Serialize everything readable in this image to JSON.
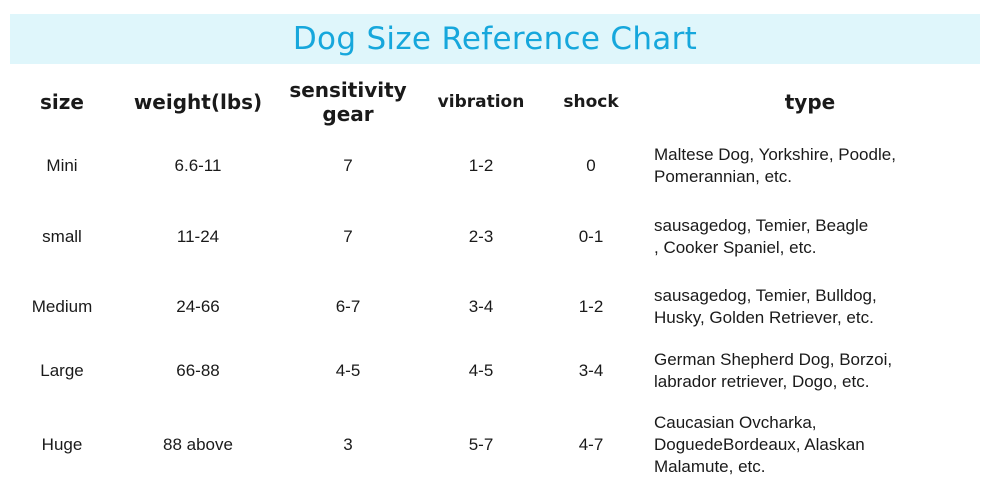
{
  "title": "Dog Size Reference Chart",
  "headers": {
    "size": "size",
    "weight": "weight(lbs)",
    "sensitivity": "sensitivity\ngear",
    "vibration": "vibration",
    "shock": "shock",
    "type": "type"
  },
  "rows": [
    {
      "size": "Mini",
      "weight": "6.6-11",
      "sensitivity": "7",
      "vibration": "1-2",
      "shock": "0",
      "type": "Maltese Dog, Yorkshire, Poodle,\nPomerannian, etc."
    },
    {
      "size": "small",
      "weight": "11-24",
      "sensitivity": "7",
      "vibration": "2-3",
      "shock": "0-1",
      "type": "sausagedog, Temier, Beagle\n, Cooker Spaniel, etc."
    },
    {
      "size": "Medium",
      "weight": "24-66",
      "sensitivity": "6-7",
      "vibration": "3-4",
      "shock": "1-2",
      "type": "sausagedog,  Temier, Bulldog,\nHusky, Golden Retriever, etc."
    },
    {
      "size": "Large",
      "weight": "66-88",
      "sensitivity": "4-5",
      "vibration": "4-5",
      "shock": "3-4",
      "type": "German Shepherd Dog, Borzoi,\nlabrador retriever, Dogo, etc."
    },
    {
      "size": "Huge",
      "weight": "88 above",
      "sensitivity": "3",
      "vibration": "5-7",
      "shock": "4-7",
      "type": "Caucasian Ovcharka,\nDoguedeBordeaux, Alaskan\nMalamute, etc."
    }
  ],
  "colors": {
    "banner_bg": "#dff6fb",
    "title_color": "#16a7dc"
  }
}
